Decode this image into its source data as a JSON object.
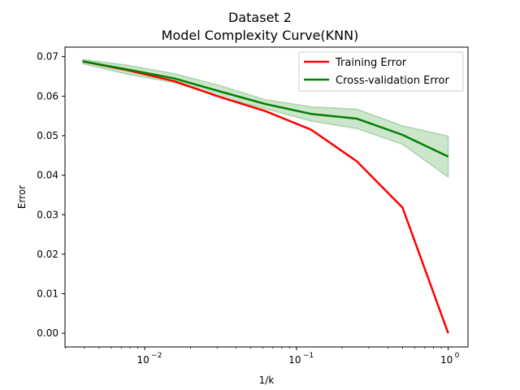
{
  "chart_data": {
    "type": "line",
    "title": "Dataset 2",
    "subtitle": "Model Complexity Curve(KNN)",
    "xlabel": "1/k",
    "ylabel": "Error",
    "xscale": "log",
    "xlim": [
      0.00298,
      1.35
    ],
    "ylim": [
      -0.00345,
      0.0724
    ],
    "yticks": [
      0.0,
      0.01,
      0.02,
      0.03,
      0.04,
      0.05,
      0.06,
      0.07
    ],
    "ytick_labels": [
      "0.00",
      "0.01",
      "0.02",
      "0.03",
      "0.04",
      "0.05",
      "0.06",
      "0.07"
    ],
    "xticks": [
      0.01,
      0.1,
      1
    ],
    "xtick_labels": [
      "10",
      "10",
      "10"
    ],
    "xtick_exponents": [
      "−2",
      "−1",
      "0"
    ],
    "grid": false,
    "legend_position": "upper right",
    "x": [
      0.0039,
      0.0078,
      0.0156,
      0.03125,
      0.0625,
      0.125,
      0.25,
      0.5,
      1.0
    ],
    "series": [
      {
        "name": "Training Error",
        "color": "#ff0000",
        "values": [
          0.0688,
          0.0665,
          0.0638,
          0.0598,
          0.0562,
          0.0515,
          0.0435,
          0.0318,
          0.0
        ]
      },
      {
        "name": "Cross-validation Error",
        "color": "#008000",
        "values": [
          0.0688,
          0.0667,
          0.0645,
          0.0612,
          0.058,
          0.0555,
          0.0543,
          0.0502,
          0.0447
        ],
        "band_upper": [
          0.0693,
          0.0678,
          0.0657,
          0.0627,
          0.0591,
          0.0573,
          0.0567,
          0.0525,
          0.0499
        ],
        "band_lower": [
          0.0682,
          0.0655,
          0.0634,
          0.0598,
          0.0568,
          0.0537,
          0.0518,
          0.0478,
          0.0395
        ],
        "band_color": "#008000"
      }
    ]
  }
}
